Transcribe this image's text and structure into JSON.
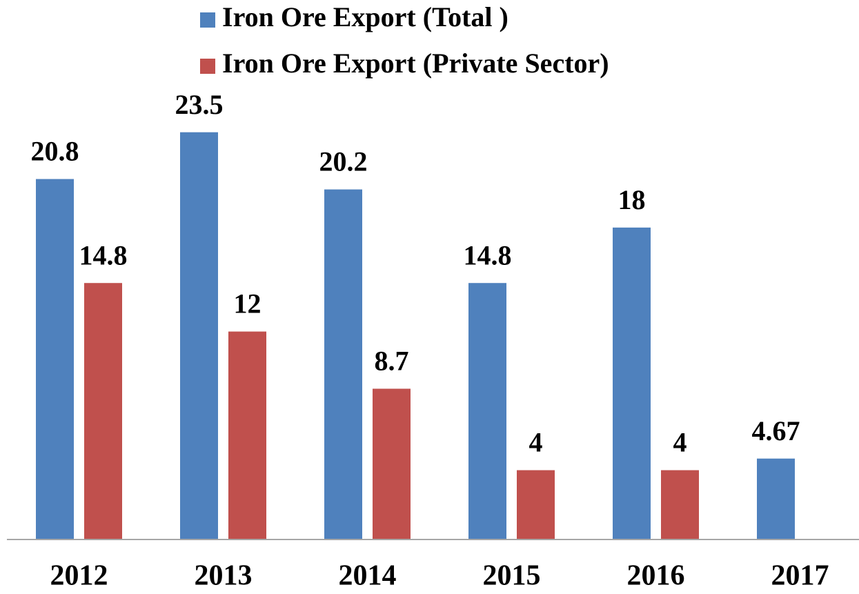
{
  "chart_data": {
    "type": "bar",
    "categories": [
      "2012",
      "2013",
      "2014",
      "2015",
      "2016",
      "2017"
    ],
    "series": [
      {
        "name": "Iron Ore Export (Total )",
        "color": "#4f81bd",
        "values": [
          20.8,
          23.5,
          20.2,
          14.8,
          18,
          4.67
        ]
      },
      {
        "name": "Iron Ore Export (Private Sector)",
        "color": "#c0504d",
        "values": [
          14.8,
          12,
          8.7,
          4,
          4,
          null
        ]
      }
    ],
    "ylim": [
      0,
      25
    ]
  }
}
